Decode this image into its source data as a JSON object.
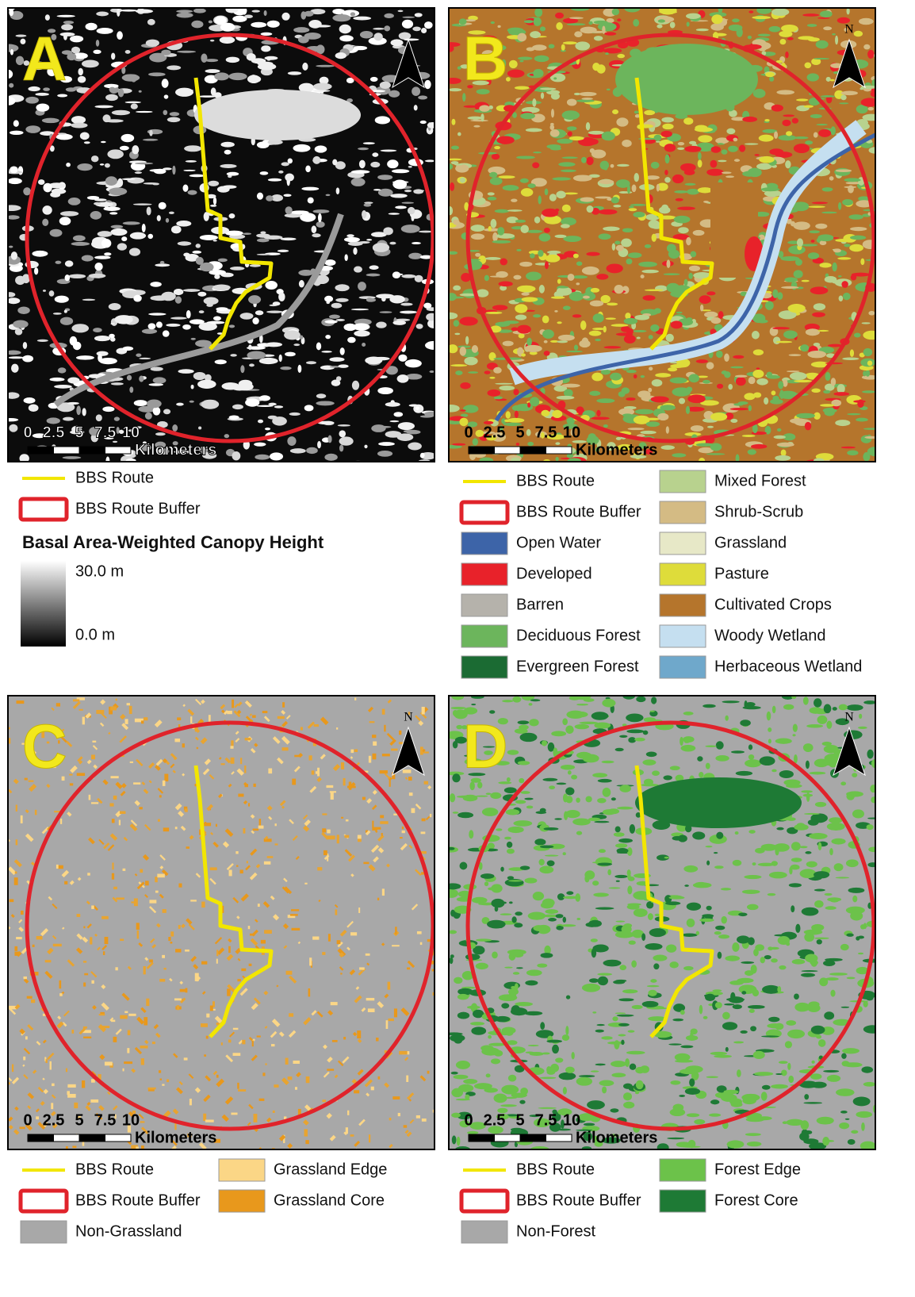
{
  "panels": [
    {
      "letter": "A",
      "scale": {
        "values": [
          0,
          2.5,
          5,
          7.5,
          10
        ],
        "unit": "Kilometers"
      },
      "legend": {
        "columns": [
          [
            {
              "label": "BBS Route",
              "kind": "route",
              "color": "#f2e600"
            },
            {
              "label": "BBS Route Buffer",
              "kind": "buffer",
              "color": "#e0232b"
            }
          ]
        ],
        "heading": "Basal Area-Weighted Canopy Height",
        "gradient": {
          "max": "30.0 m",
          "min": "0.0 m"
        }
      }
    },
    {
      "letter": "B",
      "north": "N",
      "scale": {
        "values": [
          0,
          2.5,
          5,
          7.5,
          10
        ],
        "unit": "Kilometers"
      },
      "legend": {
        "columns": [
          [
            {
              "label": "BBS Route",
              "kind": "route",
              "color": "#f2e600"
            },
            {
              "label": "BBS Route Buffer",
              "kind": "buffer",
              "color": "#e0232b"
            },
            {
              "label": "Open Water",
              "kind": "fill",
              "color": "#3d64a8"
            },
            {
              "label": "Developed",
              "kind": "fill",
              "color": "#e8222a"
            },
            {
              "label": "Barren",
              "kind": "fill",
              "color": "#b5b2ab"
            },
            {
              "label": "Deciduous Forest",
              "kind": "fill",
              "color": "#6cb55c"
            },
            {
              "label": "Evergreen Forest",
              "kind": "fill",
              "color": "#1b6b33"
            }
          ],
          [
            {
              "label": "Mixed Forest",
              "kind": "fill",
              "color": "#b8d28e"
            },
            {
              "label": "Shrub-Scrub",
              "kind": "fill",
              "color": "#d4bb84"
            },
            {
              "label": "Grassland",
              "kind": "fill",
              "color": "#e7e8c7"
            },
            {
              "label": "Pasture",
              "kind": "fill",
              "color": "#dedc3a"
            },
            {
              "label": "Cultivated Crops",
              "kind": "fill",
              "color": "#b5752c"
            },
            {
              "label": "Woody Wetland",
              "kind": "fill",
              "color": "#c5dff0"
            },
            {
              "label": "Herbaceous Wetland",
              "kind": "fill",
              "color": "#6fa8cb"
            }
          ]
        ]
      }
    },
    {
      "letter": "C",
      "north": "N",
      "scale": {
        "values": [
          0,
          2.5,
          5,
          7.5,
          10
        ],
        "unit": "Kilometers"
      },
      "legend": {
        "columns": [
          [
            {
              "label": "BBS Route",
              "kind": "route",
              "color": "#f2e600"
            },
            {
              "label": "BBS Route Buffer",
              "kind": "buffer",
              "color": "#e0232b"
            },
            {
              "label": "Non-Grassland",
              "kind": "fill",
              "color": "#a8a8a8"
            }
          ],
          [
            {
              "label": "Grassland Edge",
              "kind": "fill",
              "color": "#fbd686"
            },
            {
              "label": "Grassland Core",
              "kind": "fill",
              "color": "#e8981c"
            }
          ]
        ]
      }
    },
    {
      "letter": "D",
      "north": "N",
      "scale": {
        "values": [
          0,
          2.5,
          5,
          7.5,
          10
        ],
        "unit": "Kilometers"
      },
      "legend": {
        "columns": [
          [
            {
              "label": "BBS Route",
              "kind": "route",
              "color": "#f2e600"
            },
            {
              "label": "BBS Route Buffer",
              "kind": "buffer",
              "color": "#e0232b"
            },
            {
              "label": "Non-Forest",
              "kind": "fill",
              "color": "#a8a8a8"
            }
          ],
          [
            {
              "label": "Forest Edge",
              "kind": "fill",
              "color": "#6cc24a"
            },
            {
              "label": "Forest Core",
              "kind": "fill",
              "color": "#1e7a35"
            }
          ]
        ]
      }
    }
  ]
}
